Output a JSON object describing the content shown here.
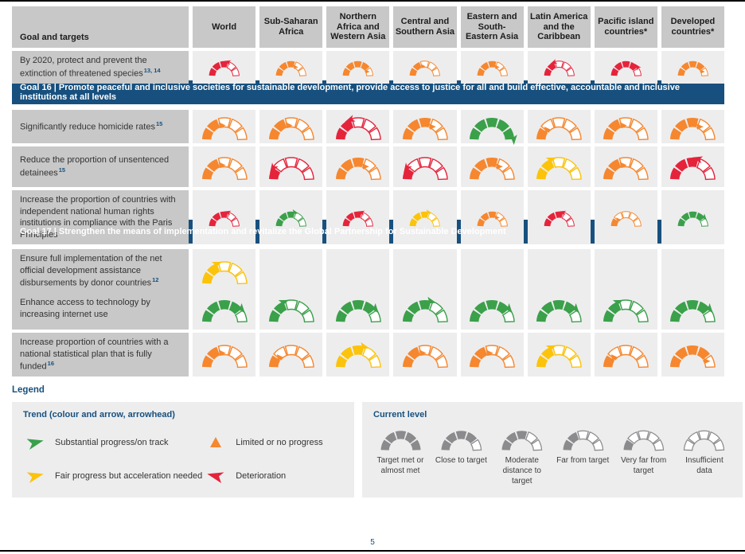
{
  "page_number": "5",
  "palette": {
    "green": "#3ba04a",
    "yellow": "#fcc30b",
    "orange": "#f6872e",
    "red": "#e5243b",
    "gray": "#8b8b8e",
    "navy": "#17507e",
    "label_bg": "#c8c8c8",
    "cell_bg": "#ededee"
  },
  "legend": {
    "title": "Legend",
    "trend": {
      "title": "Trend (colour and arrow, arrowhead)",
      "items": [
        {
          "icon": "arrow-right",
          "color": "green",
          "label": "Substantial progress/on track"
        },
        {
          "icon": "triangle-up",
          "color": "orange",
          "label": "Limited or no progress"
        },
        {
          "icon": "arrow-right",
          "color": "yellow",
          "label": "Fair progress but acceleration needed"
        },
        {
          "icon": "arrow-left",
          "color": "red",
          "label": "Deterioration"
        }
      ]
    },
    "current_level": {
      "title": "Current level",
      "items": [
        {
          "level": 5,
          "label": "Target met or almost met"
        },
        {
          "level": 4,
          "label": "Close to target"
        },
        {
          "level": 3,
          "label": "Moderate distance to target"
        },
        {
          "level": 2,
          "label": "Far from target"
        },
        {
          "level": 1,
          "label": "Very far from target"
        },
        {
          "level": 0,
          "label": "Insufficient data"
        }
      ]
    }
  },
  "chart_data": {
    "type": "table",
    "corner_header": "Goal and targets",
    "columns": [
      "World",
      "Sub-Saharan Africa",
      "Northern Africa and Western Asia",
      "Central and Southern Asia",
      "Eastern and South-Eastern Asia",
      "Latin America and the Caribbean",
      "Pacific island countries*",
      "Developed countries*"
    ],
    "level_scale": {
      "5": "Target met or almost met",
      "4": "Close to target",
      "3": "Moderate distance to target",
      "2": "Far from target",
      "1": "Very far from target",
      "0": "Insufficient data"
    },
    "trend_scale": {
      "substantial": "Substantial progress/on track",
      "fair": "Fair progress but acceleration needed",
      "limited": "Limited or no progress",
      "deterioration": "Deterioration"
    },
    "rows": [
      {
        "kind": "target",
        "label": "By 2020, protect and prevent the extinction of threatened species",
        "sup": "13, 14",
        "cells": [
          {
            "color": "red",
            "level": 3,
            "trend": "deterioration"
          },
          {
            "color": "orange",
            "level": 3,
            "trend": "limited"
          },
          {
            "color": "orange",
            "level": 4,
            "trend": "limited"
          },
          {
            "color": "orange",
            "level": 2,
            "trend": "limited"
          },
          {
            "color": "orange",
            "level": 3,
            "trend": "limited"
          },
          {
            "color": "red",
            "level": 2,
            "trend": "deterioration"
          },
          {
            "color": "red",
            "level": 4,
            "trend": "deterioration"
          },
          {
            "color": "orange",
            "level": 4,
            "trend": "limited"
          }
        ]
      },
      {
        "kind": "goal",
        "label": "Goal 16 | Promote peaceful and inclusive societies for sustainable development, provide access to justice for all and build effective, accountable and inclusive institutions at all levels"
      },
      {
        "kind": "target",
        "label": "Significantly reduce homicide rates",
        "sup": "15",
        "cells": [
          {
            "color": "orange",
            "level": 2,
            "trend": "limited"
          },
          {
            "color": "orange",
            "level": 2,
            "trend": "limited"
          },
          {
            "color": "red",
            "level": 2,
            "trend": "deterioration"
          },
          {
            "color": "orange",
            "level": 3,
            "trend": "limited"
          },
          {
            "color": "green",
            "level": 5,
            "trend": "substantial"
          },
          {
            "color": "orange",
            "level": 1,
            "trend": "limited"
          },
          {
            "color": "orange",
            "level": 2,
            "trend": "limited"
          },
          {
            "color": "orange",
            "level": 3,
            "trend": "limited"
          }
        ]
      },
      {
        "kind": "target",
        "label": "Reduce the proportion of unsentenced detainees",
        "sup": "15",
        "cells": [
          {
            "color": "orange",
            "level": 2,
            "trend": "limited"
          },
          {
            "color": "red",
            "level": 1,
            "trend": "deterioration"
          },
          {
            "color": "orange",
            "level": 3,
            "trend": "limited"
          },
          {
            "color": "red",
            "level": 1,
            "trend": "deterioration"
          },
          {
            "color": "orange",
            "level": 3,
            "trend": "limited"
          },
          {
            "color": "yellow",
            "level": 2,
            "trend": "fair"
          },
          {
            "color": "orange",
            "level": 2,
            "trend": "limited"
          },
          {
            "color": "red",
            "level": 3,
            "trend": "deterioration"
          }
        ]
      },
      {
        "kind": "target",
        "label": "Increase the proportion of countries with independent national human rights institutions in compliance with the Paris Principles",
        "sup": "",
        "cells": [
          {
            "color": "red",
            "level": 3,
            "trend": "deterioration"
          },
          {
            "color": "green",
            "level": 3,
            "trend": "substantial"
          },
          {
            "color": "red",
            "level": 3,
            "trend": "deterioration"
          },
          {
            "color": "yellow",
            "level": 3,
            "trend": "fair"
          },
          {
            "color": "orange",
            "level": 3,
            "trend": "limited"
          },
          {
            "color": "red",
            "level": 3,
            "trend": "deterioration"
          },
          {
            "color": "orange",
            "level": 1,
            "trend": "limited"
          },
          {
            "color": "green",
            "level": 4,
            "trend": "substantial"
          }
        ]
      },
      {
        "kind": "goal",
        "label": "Goal 17 | Strengthen the means of implementation and revitalize the Global Partnership for Sustainable Development"
      },
      {
        "kind": "target",
        "label": "Ensure full implementation of the net official development assistance disbursements by donor countries",
        "sup": "12",
        "cells": [
          {
            "color": "yellow",
            "level": 2,
            "trend": "fair"
          },
          null,
          null,
          null,
          null,
          null,
          null,
          null
        ]
      },
      {
        "kind": "target",
        "label": "Enhance access to technology by increasing internet use",
        "sup": "",
        "cells": [
          {
            "color": "green",
            "level": 4,
            "trend": "substantial"
          },
          {
            "color": "green",
            "level": 2,
            "trend": "substantial"
          },
          {
            "color": "green",
            "level": 4,
            "trend": "substantial"
          },
          {
            "color": "green",
            "level": 3,
            "trend": "substantial"
          },
          {
            "color": "green",
            "level": 4,
            "trend": "substantial"
          },
          {
            "color": "green",
            "level": 4,
            "trend": "substantial"
          },
          {
            "color": "green",
            "level": 2,
            "trend": "substantial"
          },
          {
            "color": "green",
            "level": 4,
            "trend": "substantial"
          }
        ]
      },
      {
        "kind": "target",
        "label": "Increase proportion of countries with a national statistical plan that is fully funded",
        "sup": "16",
        "cells": [
          {
            "color": "orange",
            "level": 2,
            "trend": "limited"
          },
          {
            "color": "orange",
            "level": 1,
            "trend": "limited"
          },
          {
            "color": "yellow",
            "level": 3,
            "trend": "fair"
          },
          {
            "color": "orange",
            "level": 2,
            "trend": "limited"
          },
          {
            "color": "orange",
            "level": 2,
            "trend": "limited"
          },
          {
            "color": "yellow",
            "level": 2,
            "trend": "fair"
          },
          {
            "color": "orange",
            "level": 1,
            "trend": "limited"
          },
          {
            "color": "orange",
            "level": 4,
            "trend": "limited"
          }
        ]
      }
    ]
  }
}
